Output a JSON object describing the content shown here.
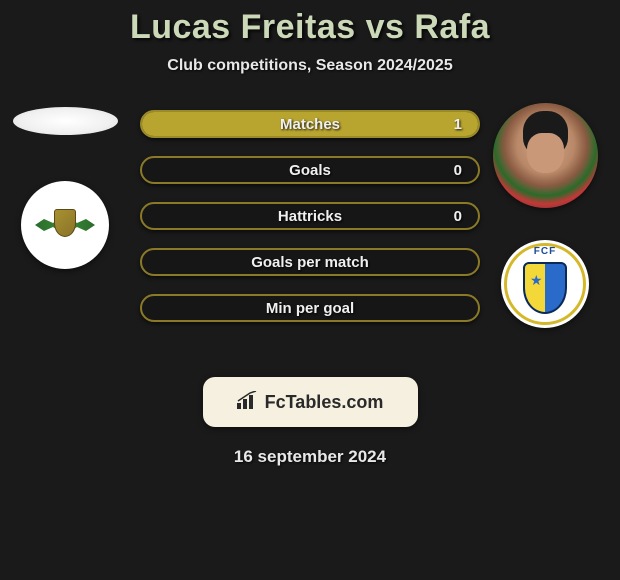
{
  "title": "Lucas Freitas vs Rafa",
  "subtitle": "Club competitions, Season 2024/2025",
  "date": "16 september 2024",
  "logo_text": "FcTables.com",
  "fcf_label": "FCF",
  "colors": {
    "bar_border": "#9a8a2a",
    "bar_fill": "#b8a530",
    "bar_empty_border": "#8a7a28",
    "title_color": "#ccd9b8"
  },
  "stats": [
    {
      "label": "Matches",
      "value": "1",
      "fill_pct": 100,
      "has_fill": true
    },
    {
      "label": "Goals",
      "value": "0",
      "fill_pct": 0,
      "has_fill": false
    },
    {
      "label": "Hattricks",
      "value": "0",
      "fill_pct": 0,
      "has_fill": false
    },
    {
      "label": "Goals per match",
      "value": "",
      "fill_pct": 0,
      "has_fill": false
    },
    {
      "label": "Min per goal",
      "value": "",
      "fill_pct": 0,
      "has_fill": false
    }
  ]
}
